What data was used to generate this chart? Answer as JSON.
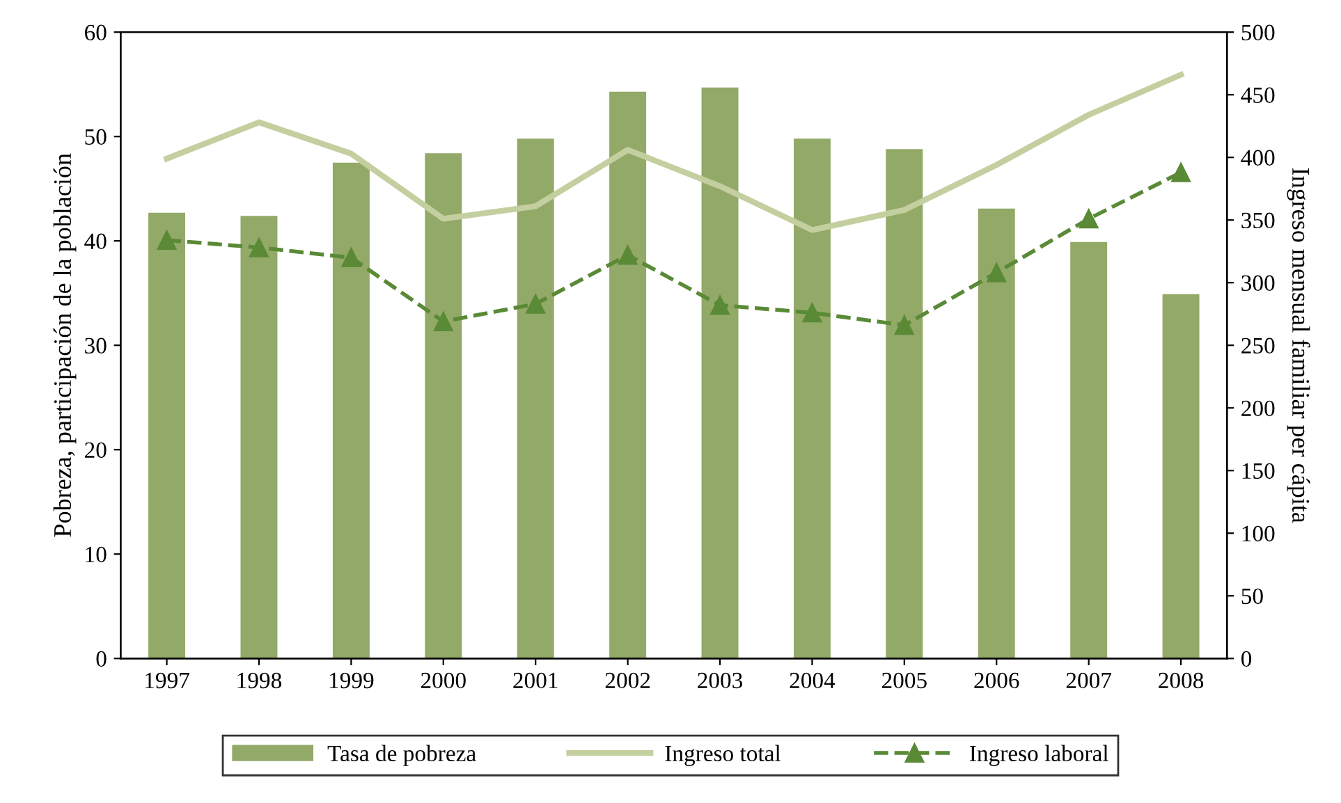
{
  "chart_data": {
    "type": "bar",
    "categories": [
      "1997",
      "1998",
      "1999",
      "2000",
      "2001",
      "2002",
      "2003",
      "2004",
      "2005",
      "2006",
      "2007",
      "2008"
    ],
    "ylabel": "Pobreza, participación de la población",
    "y2label": "Ingreso mensual familiar per cápita",
    "ylim": [
      0,
      60
    ],
    "yticks": [
      0,
      10,
      20,
      30,
      40,
      50,
      60
    ],
    "y2lim": [
      0,
      500
    ],
    "y2ticks": [
      0,
      50,
      100,
      150,
      200,
      250,
      300,
      350,
      400,
      450,
      500
    ],
    "grid": false,
    "legend": "bottom",
    "series": [
      {
        "name": "Tasa de pobreza",
        "color": "#93a968",
        "values": [
          42.7,
          42.4,
          47.5,
          48.4,
          49.8,
          54.3,
          54.7,
          49.8,
          48.8,
          43.1,
          39.9,
          34.9
        ]
      },
      {
        "name": "Ingreso total",
        "type": "line",
        "axis": "y2",
        "color": "#c4cfa0",
        "marker": "none",
        "line_style": "solid",
        "values": [
          399,
          428,
          403,
          351,
          361,
          406,
          377,
          342,
          358,
          394,
          434,
          466
        ]
      },
      {
        "name": "Ingreso laboral",
        "type": "line",
        "axis": "y2",
        "color": "#5a8a36",
        "marker": "triangle",
        "line_style": "dashed",
        "values": [
          334,
          328,
          320,
          269,
          283,
          322,
          282,
          276,
          266,
          308,
          351,
          388
        ]
      }
    ]
  }
}
